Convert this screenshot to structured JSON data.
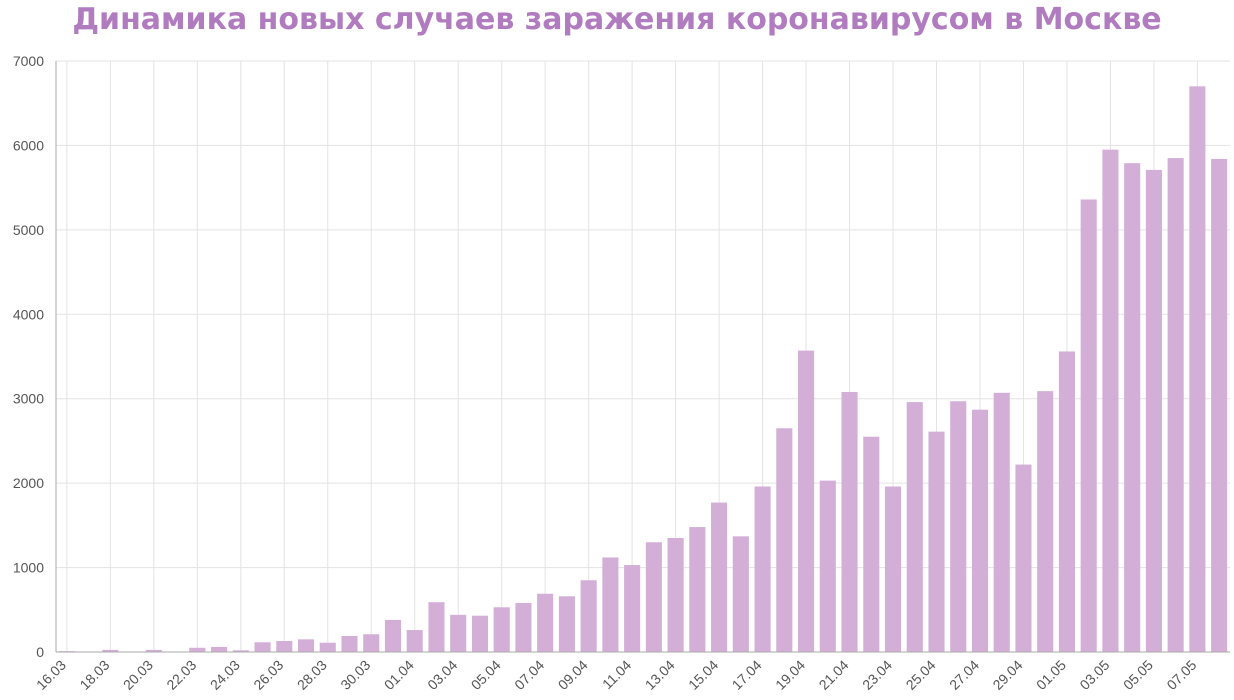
{
  "chart_data": {
    "type": "bar",
    "title": "Динамика новых случаев заражения коронавирусом в Москве",
    "xlabel": "",
    "ylabel": "",
    "ylim": [
      0,
      7000
    ],
    "yticks": [
      0,
      1000,
      2000,
      3000,
      4000,
      5000,
      6000,
      7000
    ],
    "grid": true,
    "bar_color": "#d3afd8",
    "categories": [
      "16.03",
      "17.03",
      "18.03",
      "19.03",
      "20.03",
      "21.03",
      "22.03",
      "23.03",
      "24.03",
      "25.03",
      "26.03",
      "27.03",
      "28.03",
      "29.03",
      "30.03",
      "31.03",
      "01.04",
      "02.04",
      "03.04",
      "04.04",
      "05.04",
      "06.04",
      "07.04",
      "08.04",
      "09.04",
      "10.04",
      "11.04",
      "12.04",
      "13.04",
      "14.04",
      "15.04",
      "16.04",
      "17.04",
      "18.04",
      "19.04",
      "20.04",
      "21.04",
      "22.04",
      "23.04",
      "24.04",
      "25.04",
      "26.04",
      "27.04",
      "28.04",
      "29.04",
      "30.04",
      "01.05",
      "02.05",
      "03.05",
      "04.05",
      "05.05",
      "06.05",
      "07.05",
      "08.05"
    ],
    "tick_labels": [
      "16.03",
      "18.03",
      "20.03",
      "22.03",
      "24.03",
      "26.03",
      "28.03",
      "30.03",
      "01.04",
      "03.04",
      "05.04",
      "07.04",
      "09.04",
      "11.04",
      "13.04",
      "15.04",
      "17.04",
      "19.04",
      "21.04",
      "23.04",
      "25.04",
      "27.04",
      "29.04",
      "01.05",
      "03.05",
      "05.05",
      "07.05"
    ],
    "values": [
      10,
      5,
      25,
      5,
      25,
      5,
      50,
      60,
      20,
      115,
      130,
      150,
      110,
      190,
      210,
      380,
      260,
      590,
      440,
      430,
      530,
      580,
      690,
      660,
      850,
      1120,
      1030,
      1300,
      1350,
      1480,
      1770,
      1370,
      1960,
      2650,
      3570,
      2030,
      3080,
      2550,
      1960,
      2960,
      2610,
      2970,
      2870,
      3070,
      2220,
      3090,
      3560,
      5360,
      5950,
      5790,
      5710,
      5850,
      6700,
      5840
    ]
  }
}
